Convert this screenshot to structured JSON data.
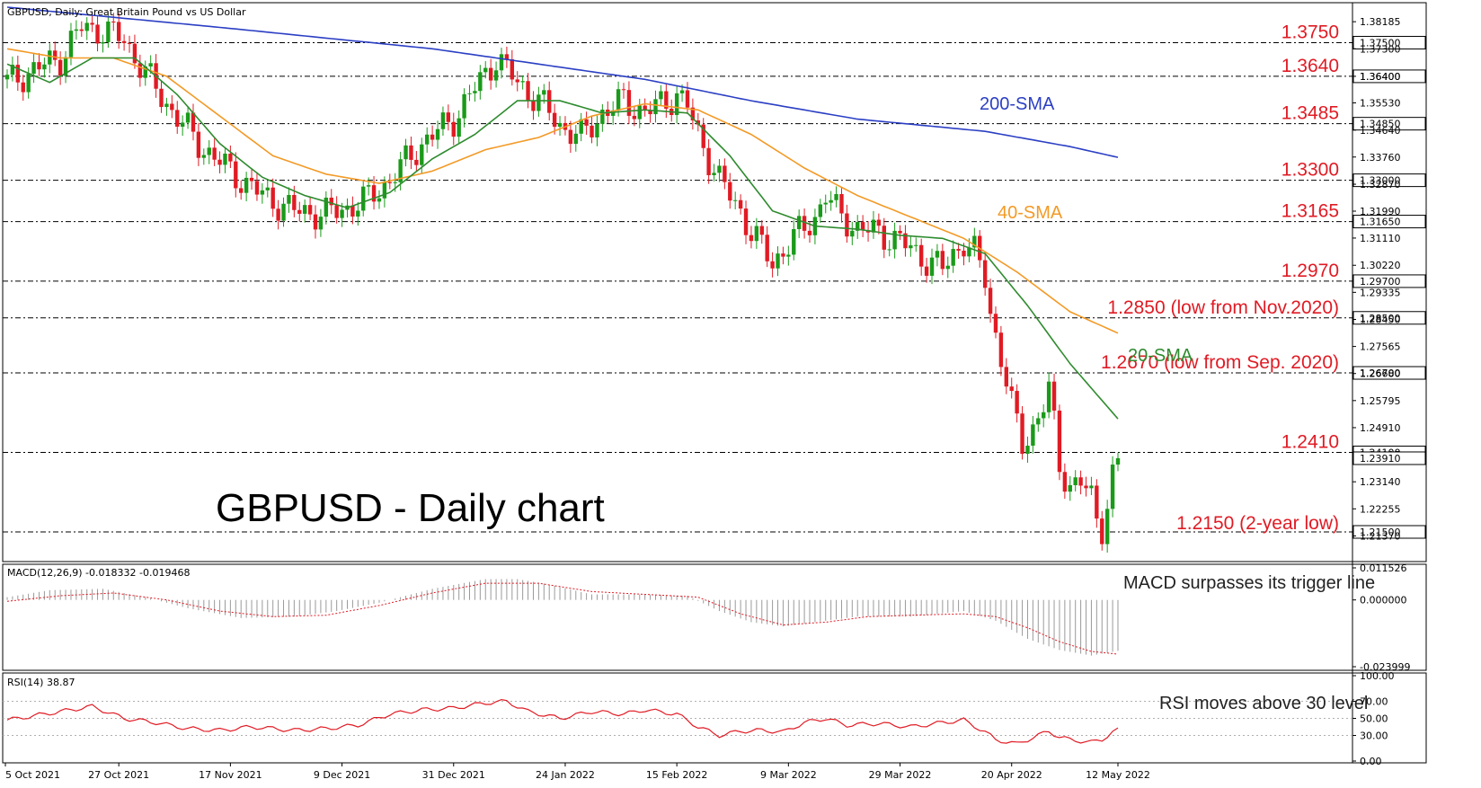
{
  "colors": {
    "bull": "#1a9a1a",
    "bear": "#e01b24",
    "sma20": "#2e8b2e",
    "sma40": "#f39a26",
    "sma200": "#2b3fc4",
    "level_text": "#e01b24",
    "low_text": "#2e9a2e"
  },
  "chart_data": [
    {
      "type": "candlestick",
      "panel": "price",
      "header": "GBPUSD, Daily:  Great Britain Pound vs US Dollar",
      "title": "GBPUSD - Daily chart",
      "ylim": [
        1.215,
        1.3866
      ],
      "y_ticks": [
        "1.38185",
        "1.37300",
        "1.36400",
        "1.35530",
        "1.34640",
        "1.33760",
        "1.32870",
        "1.31990",
        "1.31110",
        "1.30220",
        "1.29335",
        "1.28450",
        "1.27565",
        "1.26680",
        "1.25795",
        "1.24910",
        "1.24025",
        "1.23140",
        "1.22255",
        "1.21370"
      ],
      "x_ticks": [
        "5 Oct 2021",
        "27 Oct 2021",
        "17 Nov 2021",
        "9 Dec 2021",
        "31 Dec 2021",
        "24 Jan 2022",
        "15 Feb 2022",
        "9 Mar 2022",
        "29 Mar 2022",
        "20 Apr 2022",
        "12 May 2022"
      ],
      "levels": [
        {
          "value": 1.375,
          "tag": "1.37500",
          "label": "1.3750"
        },
        {
          "value": 1.364,
          "tag": "1.36400",
          "label": "1.3640"
        },
        {
          "value": 1.3485,
          "tag": "1.34850",
          "label": "1.3485"
        },
        {
          "value": 1.33,
          "tag": "1.33000",
          "label": "1.3300"
        },
        {
          "value": 1.3165,
          "tag": "1.31650",
          "label": "1.3165"
        },
        {
          "value": 1.297,
          "tag": "1.29700",
          "label": "1.2970"
        },
        {
          "value": 1.285,
          "tag": "1.28500",
          "label": "1.2850 (low from Nov.2020)"
        },
        {
          "value": 1.267,
          "tag": "1.26700",
          "label": "1.2670 (low from Sep. 2020)"
        },
        {
          "value": 1.241,
          "tag": "1.24100",
          "label": "1.2410"
        },
        {
          "value": 1.215,
          "tag": "1.21500",
          "label": "1.2150 (2-year low)"
        }
      ],
      "last_price_tag": "1.23910",
      "sma_labels": {
        "sma200": "200-SMA",
        "sma40": "40-SMA",
        "sma20": "20-SMA"
      },
      "anchors_close": [
        [
          0,
          1.362
        ],
        [
          10,
          1.37
        ],
        [
          14,
          1.38
        ],
        [
          18,
          1.379
        ],
        [
          22,
          1.376
        ],
        [
          26,
          1.365
        ],
        [
          30,
          1.355
        ],
        [
          36,
          1.342
        ],
        [
          42,
          1.333
        ],
        [
          48,
          1.325
        ],
        [
          54,
          1.32
        ],
        [
          60,
          1.319
        ],
        [
          64,
          1.321
        ],
        [
          68,
          1.324
        ],
        [
          72,
          1.33
        ],
        [
          78,
          1.342
        ],
        [
          84,
          1.35
        ],
        [
          88,
          1.36
        ],
        [
          92,
          1.37
        ],
        [
          96,
          1.362
        ],
        [
          100,
          1.356
        ],
        [
          104,
          1.348
        ],
        [
          108,
          1.344
        ],
        [
          112,
          1.352
        ],
        [
          116,
          1.356
        ],
        [
          120,
          1.352
        ],
        [
          124,
          1.356
        ],
        [
          126,
          1.358
        ],
        [
          128,
          1.354
        ],
        [
          130,
          1.345
        ],
        [
          134,
          1.33
        ],
        [
          138,
          1.32
        ],
        [
          140,
          1.313
        ],
        [
          142,
          1.308
        ],
        [
          144,
          1.303
        ],
        [
          146,
          1.307
        ],
        [
          148,
          1.311
        ],
        [
          152,
          1.318
        ],
        [
          154,
          1.325
        ],
        [
          156,
          1.32
        ],
        [
          158,
          1.317
        ],
        [
          160,
          1.314
        ],
        [
          164,
          1.313
        ],
        [
          168,
          1.31
        ],
        [
          172,
          1.305
        ],
        [
          176,
          1.301
        ],
        [
          178,
          1.306
        ],
        [
          180,
          1.31
        ],
        [
          182,
          1.306
        ],
        [
          184,
          1.298
        ],
        [
          185,
          1.287
        ],
        [
          187,
          1.272
        ],
        [
          189,
          1.256
        ],
        [
          191,
          1.244
        ],
        [
          193,
          1.249
        ],
        [
          195,
          1.256
        ],
        [
          196,
          1.261
        ],
        [
          197,
          1.25
        ],
        [
          198,
          1.237
        ],
        [
          200,
          1.23
        ],
        [
          202,
          1.231
        ],
        [
          204,
          1.226
        ],
        [
          205,
          1.22
        ],
        [
          206,
          1.217
        ],
        [
          207,
          1.224
        ],
        [
          208,
          1.233
        ],
        [
          209,
          1.2391
        ]
      ],
      "sma200_anchors": [
        [
          0,
          1.3866
        ],
        [
          40,
          1.38
        ],
        [
          80,
          1.373
        ],
        [
          120,
          1.363
        ],
        [
          140,
          1.356
        ],
        [
          160,
          1.35
        ],
        [
          184,
          1.346
        ],
        [
          200,
          1.341
        ],
        [
          209,
          1.3375
        ]
      ],
      "sma40_anchors": [
        [
          0,
          1.373
        ],
        [
          10,
          1.37
        ],
        [
          20,
          1.37
        ],
        [
          30,
          1.364
        ],
        [
          40,
          1.351
        ],
        [
          50,
          1.338
        ],
        [
          60,
          1.332
        ],
        [
          70,
          1.329
        ],
        [
          80,
          1.333
        ],
        [
          90,
          1.34
        ],
        [
          100,
          1.344
        ],
        [
          110,
          1.351
        ],
        [
          120,
          1.355
        ],
        [
          130,
          1.353
        ],
        [
          140,
          1.345
        ],
        [
          150,
          1.334
        ],
        [
          160,
          1.325
        ],
        [
          170,
          1.318
        ],
        [
          180,
          1.311
        ],
        [
          190,
          1.3
        ],
        [
          200,
          1.287
        ],
        [
          209,
          1.28
        ]
      ],
      "sma20_anchors": [
        [
          0,
          1.368
        ],
        [
          8,
          1.362
        ],
        [
          16,
          1.37
        ],
        [
          24,
          1.37
        ],
        [
          32,
          1.358
        ],
        [
          40,
          1.342
        ],
        [
          48,
          1.331
        ],
        [
          56,
          1.325
        ],
        [
          64,
          1.321
        ],
        [
          72,
          1.326
        ],
        [
          80,
          1.337
        ],
        [
          88,
          1.345
        ],
        [
          96,
          1.356
        ],
        [
          104,
          1.356
        ],
        [
          112,
          1.352
        ],
        [
          120,
          1.353
        ],
        [
          128,
          1.352
        ],
        [
          136,
          1.338
        ],
        [
          144,
          1.32
        ],
        [
          152,
          1.315
        ],
        [
          160,
          1.314
        ],
        [
          168,
          1.312
        ],
        [
          176,
          1.311
        ],
        [
          184,
          1.306
        ],
        [
          192,
          1.289
        ],
        [
          200,
          1.27
        ],
        [
          209,
          1.252
        ]
      ]
    },
    {
      "type": "histogram",
      "panel": "macd",
      "header": "MACD(12,26,9) -0.018332 -0.019468",
      "ylim": [
        -0.023999,
        0.011526
      ],
      "y_ticks": [
        "0.011526",
        "0.000000",
        "-0.023999"
      ],
      "hist_anchors": [
        [
          0,
          0.001
        ],
        [
          8,
          0.0035
        ],
        [
          18,
          0.004
        ],
        [
          26,
          0.001
        ],
        [
          34,
          -0.003
        ],
        [
          44,
          -0.0065
        ],
        [
          54,
          -0.006
        ],
        [
          62,
          -0.004
        ],
        [
          70,
          -0.001
        ],
        [
          80,
          0.004
        ],
        [
          90,
          0.0075
        ],
        [
          96,
          0.0075
        ],
        [
          102,
          0.0055
        ],
        [
          110,
          0.002
        ],
        [
          120,
          0.002
        ],
        [
          128,
          0.0015
        ],
        [
          134,
          -0.004
        ],
        [
          140,
          -0.008
        ],
        [
          146,
          -0.0095
        ],
        [
          152,
          -0.008
        ],
        [
          160,
          -0.006
        ],
        [
          170,
          -0.006
        ],
        [
          180,
          -0.004
        ],
        [
          186,
          -0.0075
        ],
        [
          192,
          -0.014
        ],
        [
          198,
          -0.018
        ],
        [
          204,
          -0.02
        ],
        [
          209,
          -0.0183
        ]
      ],
      "signal_anchors": [
        [
          0,
          -0.0005
        ],
        [
          10,
          0.0015
        ],
        [
          20,
          0.0025
        ],
        [
          30,
          0.0
        ],
        [
          40,
          -0.004
        ],
        [
          50,
          -0.006
        ],
        [
          60,
          -0.0055
        ],
        [
          70,
          -0.002
        ],
        [
          80,
          0.0025
        ],
        [
          90,
          0.006
        ],
        [
          100,
          0.006
        ],
        [
          110,
          0.003
        ],
        [
          120,
          0.002
        ],
        [
          130,
          0.001
        ],
        [
          138,
          -0.005
        ],
        [
          146,
          -0.009
        ],
        [
          154,
          -0.008
        ],
        [
          162,
          -0.006
        ],
        [
          170,
          -0.0055
        ],
        [
          180,
          -0.005
        ],
        [
          186,
          -0.006
        ],
        [
          192,
          -0.01
        ],
        [
          198,
          -0.015
        ],
        [
          204,
          -0.0185
        ],
        [
          209,
          -0.0195
        ]
      ],
      "note": "MACD surpasses its trigger line"
    },
    {
      "type": "line",
      "panel": "rsi",
      "header": "RSI(14) 38.87",
      "ylim": [
        0,
        100
      ],
      "y_ticks": [
        "100.00",
        "70.00",
        "50.00",
        "30.00",
        "0.00"
      ],
      "rsi_anchors": [
        [
          0,
          48
        ],
        [
          10,
          58
        ],
        [
          16,
          64
        ],
        [
          22,
          50
        ],
        [
          28,
          45
        ],
        [
          34,
          38
        ],
        [
          40,
          36
        ],
        [
          46,
          40
        ],
        [
          54,
          36
        ],
        [
          60,
          38
        ],
        [
          66,
          42
        ],
        [
          72,
          55
        ],
        [
          78,
          60
        ],
        [
          84,
          62
        ],
        [
          90,
          68
        ],
        [
          94,
          70
        ],
        [
          98,
          58
        ],
        [
          104,
          50
        ],
        [
          110,
          58
        ],
        [
          116,
          55
        ],
        [
          120,
          60
        ],
        [
          126,
          55
        ],
        [
          130,
          40
        ],
        [
          134,
          30
        ],
        [
          138,
          35
        ],
        [
          142,
          36
        ],
        [
          146,
          34
        ],
        [
          150,
          45
        ],
        [
          154,
          50
        ],
        [
          158,
          42
        ],
        [
          164,
          44
        ],
        [
          170,
          40
        ],
        [
          176,
          45
        ],
        [
          180,
          48
        ],
        [
          184,
          34
        ],
        [
          186,
          25
        ],
        [
          190,
          20
        ],
        [
          194,
          30
        ],
        [
          196,
          35
        ],
        [
          198,
          28
        ],
        [
          200,
          25
        ],
        [
          204,
          22
        ],
        [
          206,
          25
        ],
        [
          209,
          38.87
        ]
      ],
      "note": "RSI moves above 30 level"
    }
  ]
}
